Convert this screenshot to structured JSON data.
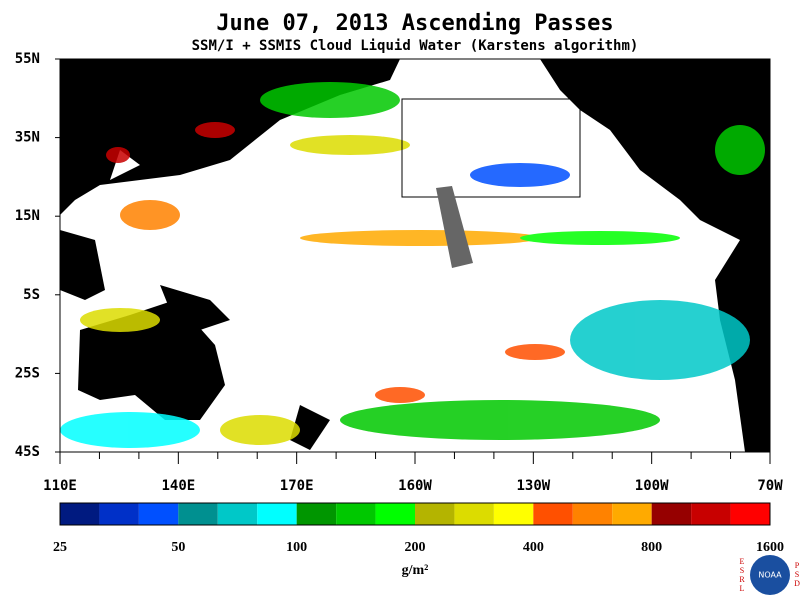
{
  "title": "June 07, 2013  Ascending Passes",
  "subtitle": "SSM/I + SSMIS Cloud Liquid Water (Karstens algorithm)",
  "lat_labels": [
    "55N",
    "35N",
    "15N",
    "5S",
    "25S",
    "45S"
  ],
  "lon_labels": [
    "110E",
    "140E",
    "170E",
    "160W",
    "130W",
    "100W",
    "70W"
  ],
  "colorbar": {
    "colors": [
      "#001a80",
      "#0030c8",
      "#0050ff",
      "#009090",
      "#00c8c8",
      "#00ffff",
      "#009600",
      "#00c800",
      "#00ff00",
      "#b4b400",
      "#dcdc00",
      "#ffff00",
      "#ff5000",
      "#ff8200",
      "#ffaa00",
      "#960000",
      "#c80000",
      "#ff0000"
    ],
    "tick_labels": [
      25,
      50,
      100,
      200,
      400,
      800,
      1600
    ],
    "unit": "g/m²"
  },
  "logo": {
    "center": "NOAA",
    "left": [
      "E",
      "S",
      "R",
      "L"
    ],
    "right": [
      "P",
      "S",
      "D"
    ]
  }
}
